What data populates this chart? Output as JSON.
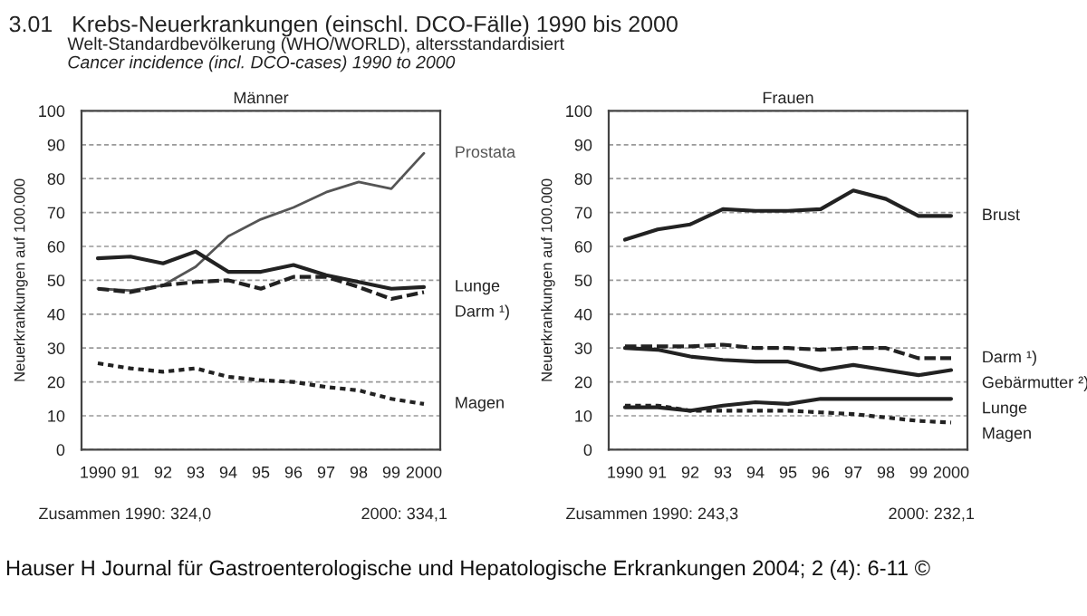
{
  "chart_data": [
    {
      "type": "line",
      "title": "Männer",
      "ylabel": "Neuerkrankungen auf 100.000",
      "annotations": [
        "3.01   Krebs-Neuerkrankungen (einschl. DCO-Fälle) 1990 bis 2000",
        "Welt-Standardbevölkerung (WHO/WORLD), altersstandardisiert",
        "Cancer incidence (incl. DCO-cases) 1990 to 2000",
        "Zusammen 1990: 324,0",
        "2000: 334,1",
        "Hauser H Journal für Gastroenterologische und Hepatologische Erkrankungen 2004; 2 (4): 6-11 ©"
      ],
      "x": [
        1990,
        1991,
        1992,
        1993,
        1994,
        1995,
        1996,
        1997,
        1998,
        1999,
        2000
      ],
      "series": [
        {
          "name": "Prostata",
          "color": "#555555",
          "line_style": "solid",
          "values": [
            47.5,
            47,
            48.5,
            54,
            63,
            68,
            71.5,
            76,
            79,
            77,
            87.5
          ]
        },
        {
          "name": "Lunge",
          "color": "#222222",
          "line_style": "solid",
          "values": [
            56.5,
            57,
            55,
            58.5,
            52.5,
            52.5,
            54.5,
            51.5,
            49.5,
            47.5,
            48
          ]
        },
        {
          "name": "Darm ¹)",
          "color": "#222222",
          "line_style": "dashed",
          "values": [
            47.5,
            46.5,
            48.5,
            49.5,
            50,
            47.5,
            51,
            51,
            48,
            44.5,
            46.5
          ]
        },
        {
          "name": "Magen",
          "color": "#222222",
          "line_style": "dotted",
          "values": [
            25.5,
            24,
            23,
            24,
            21.5,
            20.5,
            20,
            18.5,
            17.5,
            15,
            13.5
          ]
        }
      ],
      "xlim": [
        1989.5,
        2000.5
      ],
      "xticks": [
        {
          "value": 1990,
          "label": "1990"
        },
        {
          "value": 1991,
          "label": "91"
        },
        {
          "value": 1992,
          "label": "92"
        },
        {
          "value": 1993,
          "label": "93"
        },
        {
          "value": 1994,
          "label": "94"
        },
        {
          "value": 1995,
          "label": "95"
        },
        {
          "value": 1996,
          "label": "96"
        },
        {
          "value": 1997,
          "label": "97"
        },
        {
          "value": 1998,
          "label": "98"
        },
        {
          "value": 1999,
          "label": "99"
        },
        {
          "value": 2000,
          "label": "2000"
        }
      ],
      "ylim": [
        0,
        100
      ],
      "yticks": [
        0,
        10,
        20,
        30,
        40,
        50,
        60,
        70,
        80,
        90,
        100
      ],
      "grid": "y",
      "legend": false,
      "marker": "none"
    },
    {
      "type": "line",
      "title": "Frauen",
      "ylabel": "Neuerkrankungen auf 100.000",
      "annotations": [
        "Zusammen 1990: 243,3",
        "2000: 232,1"
      ],
      "x": [
        1990,
        1991,
        1992,
        1993,
        1994,
        1995,
        1996,
        1997,
        1998,
        1999,
        2000
      ],
      "series": [
        {
          "name": "Brust",
          "color": "#222222",
          "line_style": "solid",
          "values": [
            62,
            65,
            66.5,
            71,
            70.5,
            70.5,
            71,
            76.5,
            74,
            69,
            69
          ]
        },
        {
          "name": "Darm ¹)",
          "color": "#222222",
          "line_style": "dashed",
          "values": [
            30.5,
            30.5,
            30.5,
            31,
            30,
            30,
            29.5,
            30,
            30,
            27,
            27
          ]
        },
        {
          "name": "Gebärmutter ²)",
          "color": "#222222",
          "line_style": "solid",
          "values": [
            30,
            29.5,
            27.5,
            26.5,
            26,
            26,
            23.5,
            25,
            23.5,
            22,
            23.5
          ]
        },
        {
          "name": "Lunge",
          "color": "#222222",
          "line_style": "solid",
          "values": [
            12.5,
            12.5,
            11.5,
            13,
            14,
            13.5,
            15,
            15,
            15,
            15,
            15
          ]
        },
        {
          "name": "Magen",
          "color": "#222222",
          "line_style": "dotted",
          "values": [
            13,
            13,
            11.5,
            11.5,
            11.5,
            11.5,
            11,
            10.5,
            9.5,
            8.5,
            8
          ]
        }
      ],
      "xlim": [
        1989.5,
        2000.5
      ],
      "xticks": [
        {
          "value": 1990,
          "label": "1990"
        },
        {
          "value": 1991,
          "label": "91"
        },
        {
          "value": 1992,
          "label": "92"
        },
        {
          "value": 1993,
          "label": "93"
        },
        {
          "value": 1994,
          "label": "94"
        },
        {
          "value": 1995,
          "label": "95"
        },
        {
          "value": 1996,
          "label": "96"
        },
        {
          "value": 1997,
          "label": "97"
        },
        {
          "value": 1998,
          "label": "98"
        },
        {
          "value": 1999,
          "label": "99"
        },
        {
          "value": 2000,
          "label": "2000"
        }
      ],
      "ylim": [
        0,
        100
      ],
      "yticks": [
        0,
        10,
        20,
        30,
        40,
        50,
        60,
        70,
        80,
        90,
        100
      ],
      "grid": "y",
      "legend": false,
      "marker": "none"
    }
  ]
}
